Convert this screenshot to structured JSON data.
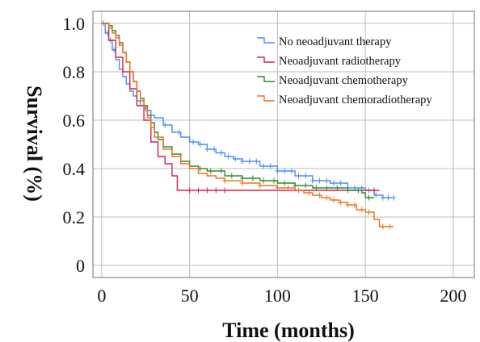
{
  "chart_data": {
    "type": "line",
    "step": true,
    "xlabel": "Time (months)",
    "ylabel": "Survival (%)",
    "xlim": [
      -5,
      212
    ],
    "ylim": [
      -0.05,
      1.05
    ],
    "xticks": [
      0,
      50,
      100,
      150,
      200
    ],
    "yticks": [
      0,
      0.2,
      0.4,
      0.6,
      0.8,
      1.0
    ],
    "xtick_labels": [
      "0",
      "50",
      "100",
      "150",
      "200"
    ],
    "ytick_labels": [
      "0",
      "0.2",
      "0.4",
      "0.6",
      "0.8",
      "1.0"
    ],
    "grid": true,
    "legend_position": "top-right",
    "series": [
      {
        "name": "No neoadjuvant therapy",
        "color": "#4a8ef0",
        "x": [
          0,
          2,
          4,
          6,
          8,
          10,
          12,
          14,
          16,
          18,
          20,
          22,
          25,
          28,
          30,
          35,
          40,
          45,
          50,
          55,
          60,
          65,
          70,
          75,
          80,
          90,
          100,
          110,
          120,
          130,
          140,
          150,
          155,
          160,
          165
        ],
        "y": [
          1.0,
          0.96,
          0.93,
          0.89,
          0.85,
          0.81,
          0.78,
          0.75,
          0.72,
          0.7,
          0.68,
          0.66,
          0.64,
          0.62,
          0.61,
          0.58,
          0.55,
          0.53,
          0.51,
          0.5,
          0.48,
          0.465,
          0.45,
          0.44,
          0.43,
          0.41,
          0.39,
          0.37,
          0.35,
          0.34,
          0.32,
          0.31,
          0.29,
          0.28,
          0.28
        ],
        "censor_x": [
          1,
          3,
          5,
          7,
          36,
          44,
          52,
          56,
          60,
          64,
          68,
          72,
          76,
          80,
          84,
          88,
          92,
          96,
          100,
          104,
          108,
          112,
          116,
          120,
          124,
          128,
          132,
          136,
          140,
          144,
          148,
          152,
          156,
          160,
          163,
          166
        ]
      },
      {
        "name": "Neoadjuvant radiotherapy",
        "color": "#d6204e",
        "x": [
          0,
          4,
          8,
          12,
          16,
          20,
          24,
          28,
          32,
          36,
          40,
          43,
          155,
          158
        ],
        "y": [
          1.0,
          0.93,
          0.86,
          0.8,
          0.73,
          0.66,
          0.6,
          0.51,
          0.45,
          0.42,
          0.37,
          0.31,
          0.31,
          0.31
        ],
        "censor_x": [
          50,
          55,
          60,
          65,
          70,
          155
        ]
      },
      {
        "name": "Neoadjuvant chemotherapy",
        "color": "#2e8b2e",
        "x": [
          0,
          2,
          4,
          6,
          8,
          10,
          12,
          14,
          16,
          18,
          20,
          22,
          24,
          26,
          28,
          30,
          32,
          35,
          40,
          45,
          50,
          55,
          60,
          70,
          80,
          90,
          100,
          110,
          120,
          130,
          140,
          148,
          150,
          155
        ],
        "y": [
          1.0,
          1.0,
          0.99,
          0.97,
          0.95,
          0.92,
          0.88,
          0.84,
          0.8,
          0.76,
          0.72,
          0.69,
          0.66,
          0.62,
          0.59,
          0.55,
          0.52,
          0.49,
          0.46,
          0.43,
          0.41,
          0.4,
          0.39,
          0.37,
          0.36,
          0.35,
          0.34,
          0.33,
          0.32,
          0.32,
          0.31,
          0.3,
          0.28,
          0.28
        ],
        "censor_x": [
          56,
          62,
          68,
          74,
          80,
          86,
          92,
          98,
          104,
          110,
          116,
          122,
          128,
          134,
          140,
          146,
          152
        ]
      },
      {
        "name": "Neoadjuvant chemoradiotherapy",
        "color": "#f0701e",
        "x": [
          0,
          2,
          4,
          6,
          8,
          10,
          12,
          14,
          16,
          18,
          20,
          22,
          24,
          26,
          28,
          30,
          35,
          40,
          45,
          50,
          55,
          60,
          65,
          70,
          80,
          90,
          100,
          110,
          115,
          120,
          125,
          130,
          135,
          140,
          145,
          150,
          155,
          158,
          162,
          166
        ],
        "y": [
          1.0,
          1.0,
          0.98,
          0.96,
          0.94,
          0.91,
          0.88,
          0.84,
          0.8,
          0.76,
          0.72,
          0.68,
          0.65,
          0.61,
          0.57,
          0.53,
          0.48,
          0.45,
          0.42,
          0.4,
          0.38,
          0.37,
          0.36,
          0.35,
          0.34,
          0.33,
          0.32,
          0.31,
          0.3,
          0.29,
          0.28,
          0.27,
          0.26,
          0.25,
          0.23,
          0.22,
          0.19,
          0.16,
          0.16,
          0.16
        ],
        "censor_x": [
          70,
          80,
          90,
          100,
          106,
          112,
          118,
          124,
          128,
          132,
          136,
          140,
          144,
          148,
          152,
          160,
          164
        ]
      }
    ]
  }
}
